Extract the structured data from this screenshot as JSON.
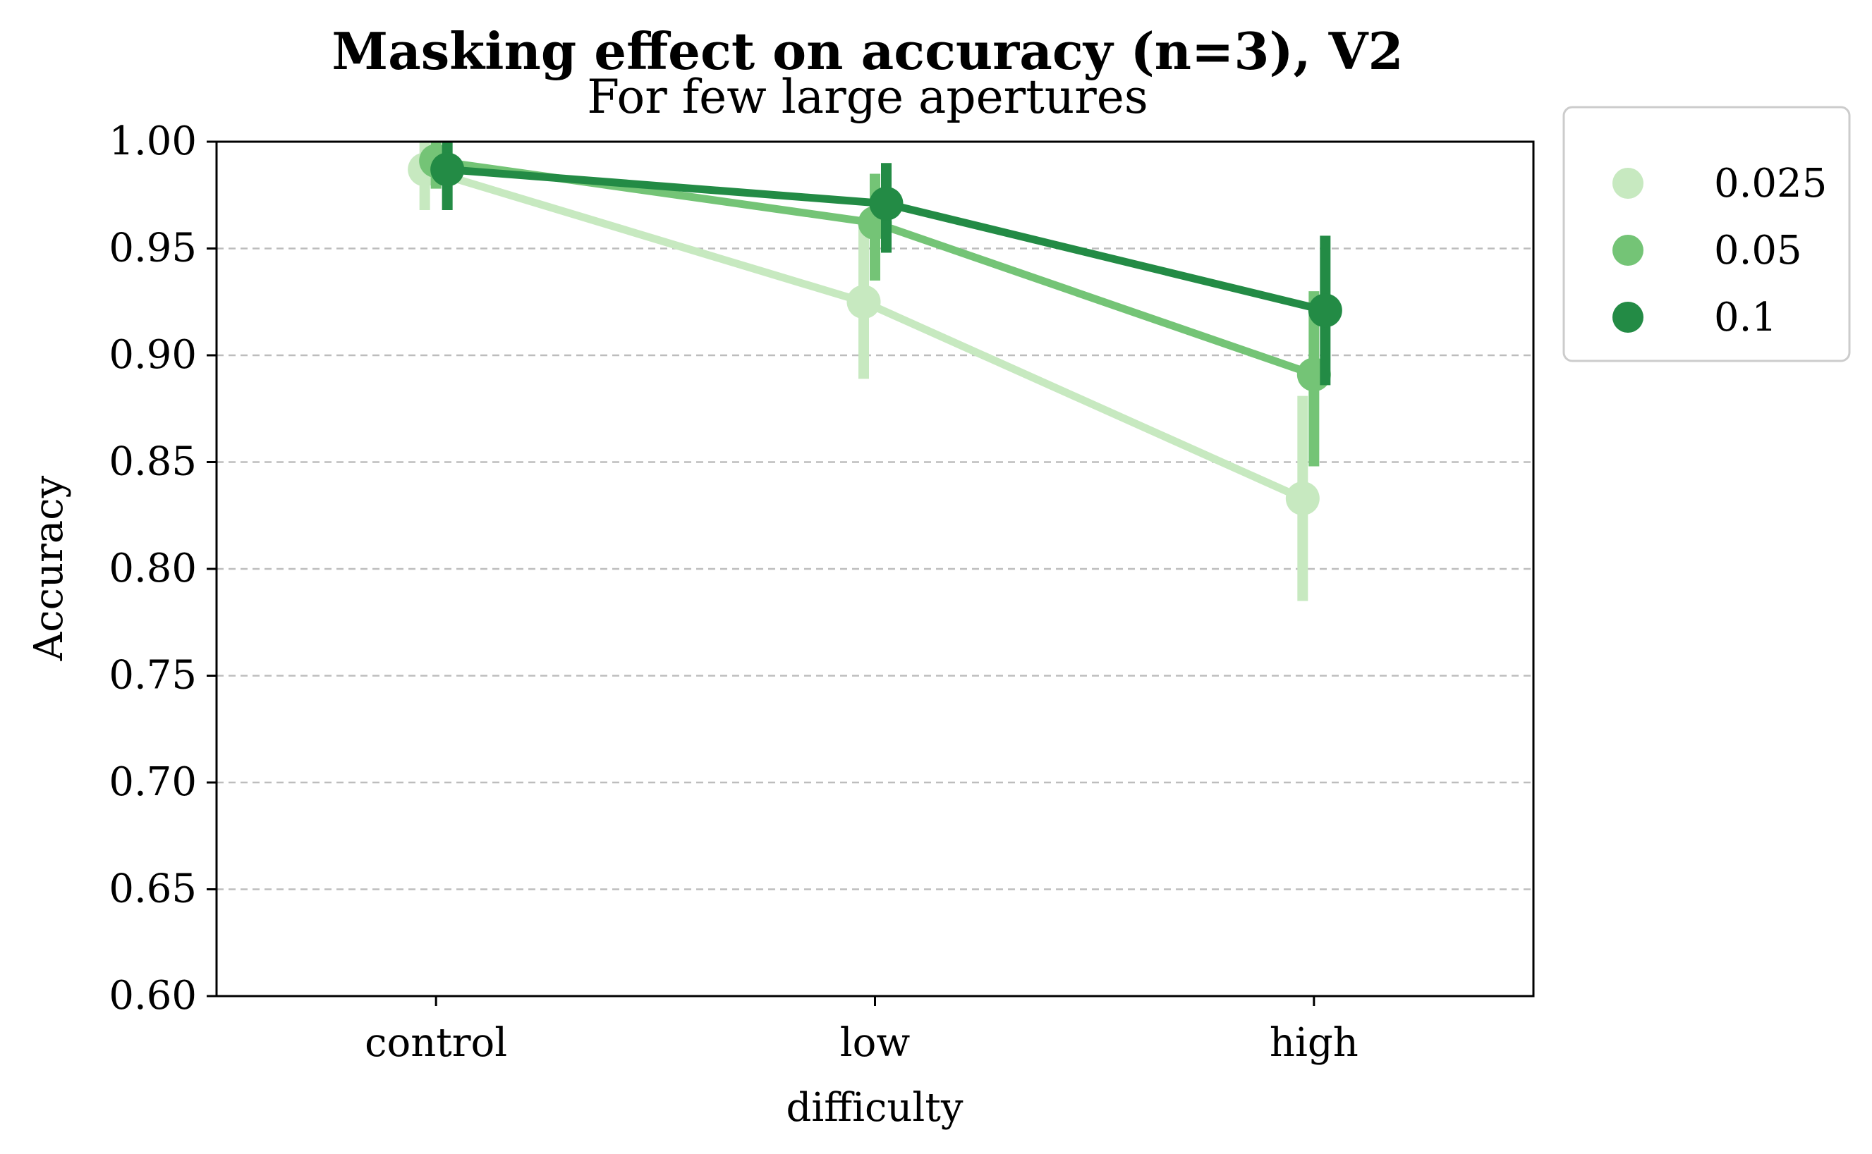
{
  "chart_data": {
    "type": "line",
    "title": "Masking effect on accuracy (n=3), V2",
    "subtitle": "For few large apertures",
    "xlabel": "difficulty",
    "ylabel": "Accuracy",
    "categories": [
      "control",
      "low",
      "high"
    ],
    "ylim": [
      0.6,
      1.0
    ],
    "yticks": [
      "0.60",
      "0.65",
      "0.70",
      "0.75",
      "0.80",
      "0.85",
      "0.90",
      "0.95",
      "1.00"
    ],
    "grid": "horizontal dashed",
    "legend_position": "outside right",
    "series": [
      {
        "name": "0.025",
        "color": "#c7e9c0",
        "values": [
          0.987,
          0.925,
          0.833
        ],
        "err_low": [
          0.968,
          0.889,
          0.785
        ],
        "err_high": [
          1.0,
          0.96,
          0.881
        ]
      },
      {
        "name": "0.05",
        "color": "#74c476",
        "values": [
          0.991,
          0.962,
          0.891
        ],
        "err_low": [
          0.978,
          0.935,
          0.848
        ],
        "err_high": [
          1.0,
          0.985,
          0.93
        ]
      },
      {
        "name": "0.1",
        "color": "#238b45",
        "values": [
          0.987,
          0.971,
          0.921
        ],
        "err_low": [
          0.968,
          0.948,
          0.886
        ],
        "err_high": [
          1.0,
          0.99,
          0.956
        ]
      }
    ]
  }
}
